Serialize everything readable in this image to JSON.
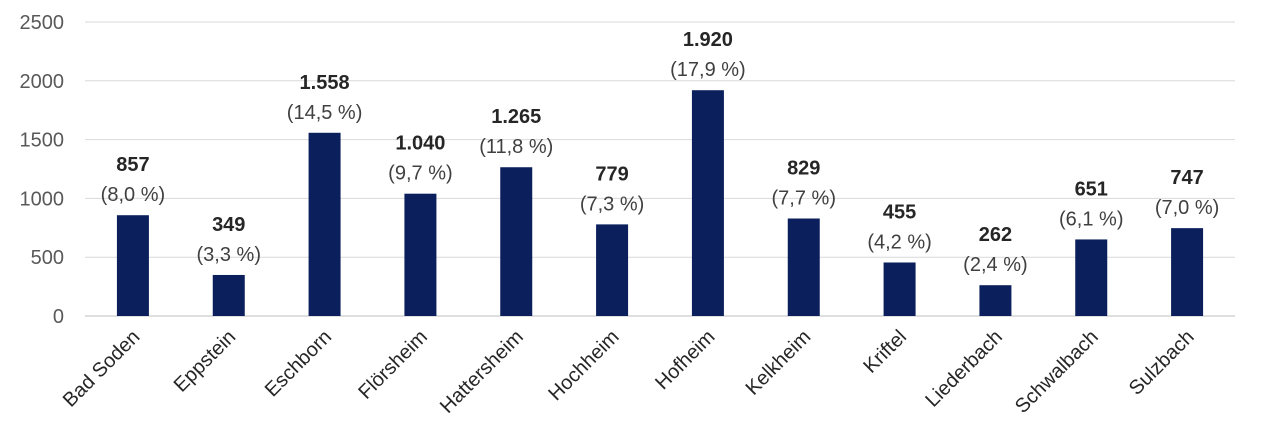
{
  "chart_data": {
    "type": "bar",
    "categories": [
      "Bad Soden",
      "Eppstein",
      "Eschborn",
      "Flörsheim",
      "Hattersheim",
      "Hochheim",
      "Hofheim",
      "Kelkheim",
      "Kriftel",
      "Liederbach",
      "Schwalbach",
      "Sulzbach"
    ],
    "values": [
      857,
      349,
      1558,
      1040,
      1265,
      779,
      1920,
      829,
      455,
      262,
      651,
      747
    ],
    "value_labels": [
      "857",
      "349",
      "1.558",
      "1.040",
      "1.265",
      "779",
      "1.920",
      "829",
      "455",
      "262",
      "651",
      "747"
    ],
    "percent_labels": [
      "(8,0 %)",
      "(3,3 %)",
      "(14,5 %)",
      "(9,7 %)",
      "(11,8 %)",
      "(7,3 %)",
      "(17,9 %)",
      "(7,7 %)",
      "(4,2 %)",
      "(2,4 %)",
      "(6,1 %)",
      "(7,0 %)"
    ],
    "ylim": [
      0,
      2500
    ],
    "yticks": [
      "0",
      "500",
      "1000",
      "1500",
      "2000",
      "2500"
    ],
    "grid": true,
    "colors": {
      "bar": "#0a1f5c"
    }
  }
}
